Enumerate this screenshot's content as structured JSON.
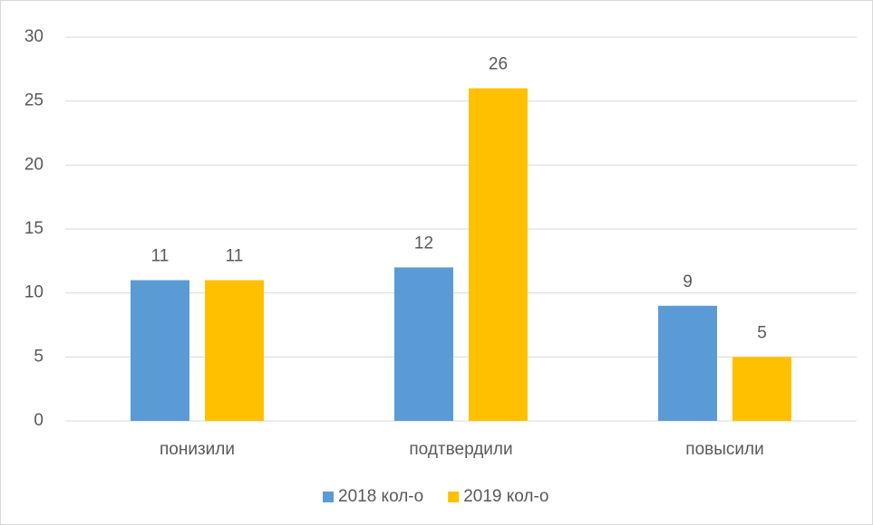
{
  "chart_data": {
    "type": "bar",
    "categories": [
      "понизили",
      "подтвердили",
      "повысили"
    ],
    "series": [
      {
        "name": "2018 кол-о",
        "color": "#5b9bd5",
        "values": [
          11,
          12,
          9
        ]
      },
      {
        "name": "2019 кол-о",
        "color": "#ffc000",
        "values": [
          11,
          26,
          5
        ]
      }
    ],
    "ylim": [
      0,
      30
    ],
    "yticks": [
      0,
      5,
      10,
      15,
      20,
      25,
      30
    ],
    "grid": true,
    "legend": "bottom"
  }
}
